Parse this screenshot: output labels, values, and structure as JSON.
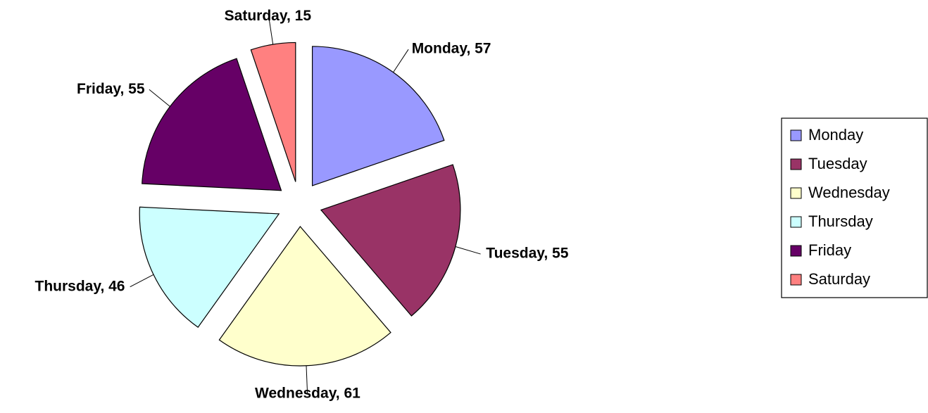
{
  "chart_data": {
    "type": "pie",
    "categories": [
      "Monday",
      "Tuesday",
      "Wednesday",
      "Thursday",
      "Friday",
      "Saturday"
    ],
    "values": [
      57,
      55,
      61,
      46,
      55,
      15
    ],
    "value_labels": [
      "Monday, 57",
      "Tuesday, 55",
      "Wednesday, 61",
      "Thursday, 46",
      "Friday, 55",
      "Saturday, 15"
    ],
    "colors": [
      "#9999ff",
      "#993366",
      "#ffffcc",
      "#ccffff",
      "#660066",
      "#ff8080"
    ],
    "legend": "right"
  }
}
